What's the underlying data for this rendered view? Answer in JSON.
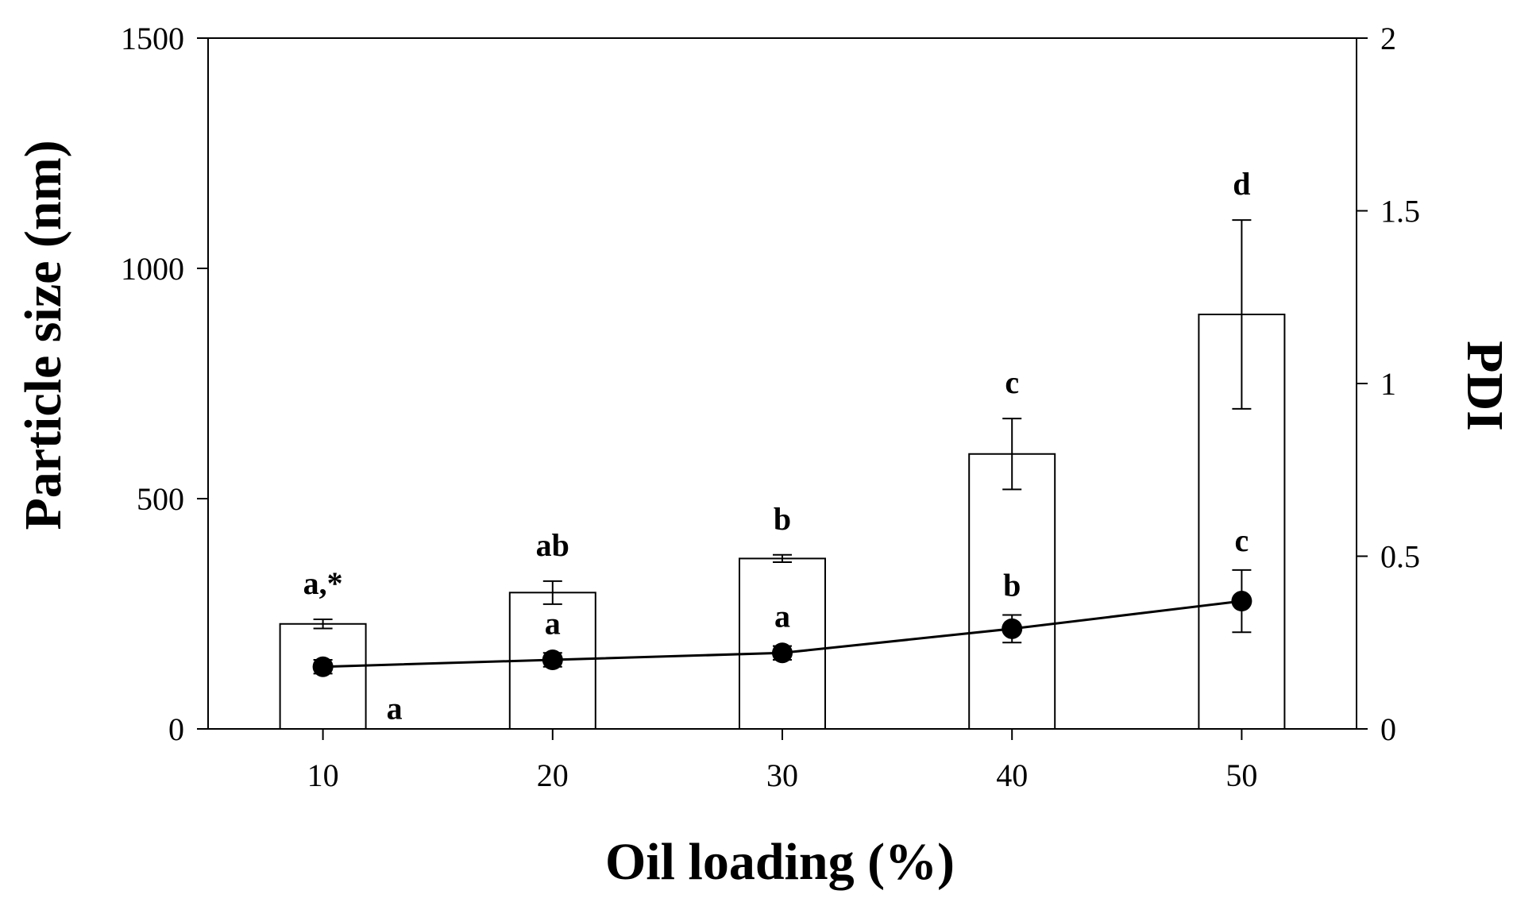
{
  "chart_data": {
    "type": "bar",
    "x": [
      10,
      20,
      30,
      40,
      50
    ],
    "xticks": [
      "10",
      "20",
      "30",
      "40",
      "50"
    ],
    "xlim": [
      5,
      55
    ],
    "xlabel": "Oil loading (%)",
    "ylabel": "Particle size (nm)",
    "ylim": [
      0,
      1500
    ],
    "yticks": [
      "0",
      "500",
      "1000",
      "1500"
    ],
    "y2label": "PDI",
    "y2lim": [
      0,
      2
    ],
    "y2ticks": [
      "0",
      "0.5",
      "1",
      "1.5",
      "2"
    ],
    "grid": false,
    "series": [
      {
        "type": "bar",
        "axis": "left",
        "values": [
          228,
          296,
          370,
          597,
          900
        ],
        "errors": [
          10,
          25,
          8,
          77,
          205
        ],
        "labels": [
          "a,*",
          "ab",
          "b",
          "c",
          "d"
        ]
      },
      {
        "type": "line",
        "axis": "right",
        "values": [
          0.18,
          0.2,
          0.22,
          0.29,
          0.37
        ],
        "errors": [
          0.02,
          0.02,
          0.02,
          0.04,
          0.09
        ],
        "labels": [
          "a",
          "a",
          "a",
          "b",
          "c"
        ]
      }
    ]
  }
}
